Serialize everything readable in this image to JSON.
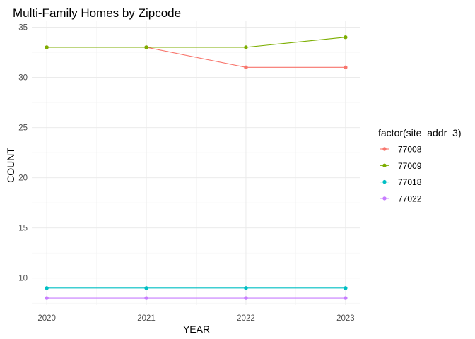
{
  "chart_data": {
    "type": "line",
    "title": "Multi-Family Homes by Zipcode",
    "xlabel": "YEAR",
    "ylabel": "COUNT",
    "x": [
      2020,
      2021,
      2022,
      2023
    ],
    "x_tick_labels": [
      "2020",
      "2021",
      "2022",
      "2023"
    ],
    "xlim": [
      2019.85,
      2023.15
    ],
    "ylim": [
      7.3,
      35.6
    ],
    "y_ticks": [
      10,
      15,
      20,
      25,
      30,
      35
    ],
    "y_tick_labels": [
      "10",
      "15",
      "20",
      "25",
      "30",
      "35"
    ],
    "grid": true,
    "legend": {
      "title": "factor(site_addr_3)",
      "position": "right"
    },
    "series": [
      {
        "name": "77008",
        "color": "#F8766D",
        "values": [
          33,
          33,
          31,
          31
        ]
      },
      {
        "name": "77009",
        "color": "#7CAE00",
        "values": [
          33,
          33,
          33,
          34
        ]
      },
      {
        "name": "77018",
        "color": "#00BFC4",
        "values": [
          9,
          9,
          9,
          9
        ]
      },
      {
        "name": "77022",
        "color": "#C77CFF",
        "values": [
          8,
          8,
          8,
          8
        ]
      }
    ]
  }
}
